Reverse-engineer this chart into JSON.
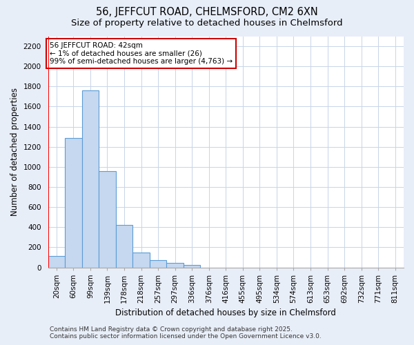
{
  "title_line1": "56, JEFFCUT ROAD, CHELMSFORD, CM2 6XN",
  "title_line2": "Size of property relative to detached houses in Chelmsford",
  "xlabel": "Distribution of detached houses by size in Chelmsford",
  "ylabel": "Number of detached properties",
  "categories": [
    "20sqm",
    "60sqm",
    "99sqm",
    "139sqm",
    "178sqm",
    "218sqm",
    "257sqm",
    "297sqm",
    "336sqm",
    "376sqm",
    "416sqm",
    "455sqm",
    "495sqm",
    "534sqm",
    "574sqm",
    "613sqm",
    "653sqm",
    "692sqm",
    "732sqm",
    "771sqm",
    "811sqm"
  ],
  "bar_values": [
    115,
    1290,
    1760,
    957,
    425,
    150,
    70,
    42,
    22,
    0,
    0,
    0,
    0,
    0,
    0,
    0,
    0,
    0,
    0,
    0,
    0
  ],
  "bar_color": "#c5d8f0",
  "bar_edge_color": "#5b9bd5",
  "highlight_color": "#ff0000",
  "annotation_text": "56 JEFFCUT ROAD: 42sqm\n← 1% of detached houses are smaller (26)\n99% of semi-detached houses are larger (4,763) →",
  "annotation_box_color": "#ffffff",
  "annotation_box_edge_color": "#cc0000",
  "ylim": [
    0,
    2300
  ],
  "yticks": [
    0,
    200,
    400,
    600,
    800,
    1000,
    1200,
    1400,
    1600,
    1800,
    2000,
    2200
  ],
  "figure_bg_color": "#e8eef8",
  "plot_bg_color": "#ffffff",
  "grid_color": "#c8d4e8",
  "footer_text": "Contains HM Land Registry data © Crown copyright and database right 2025.\nContains public sector information licensed under the Open Government Licence v3.0.",
  "title_fontsize": 10.5,
  "subtitle_fontsize": 9.5,
  "axis_label_fontsize": 8.5,
  "tick_fontsize": 7.5,
  "annotation_fontsize": 7.5,
  "footer_fontsize": 6.5
}
